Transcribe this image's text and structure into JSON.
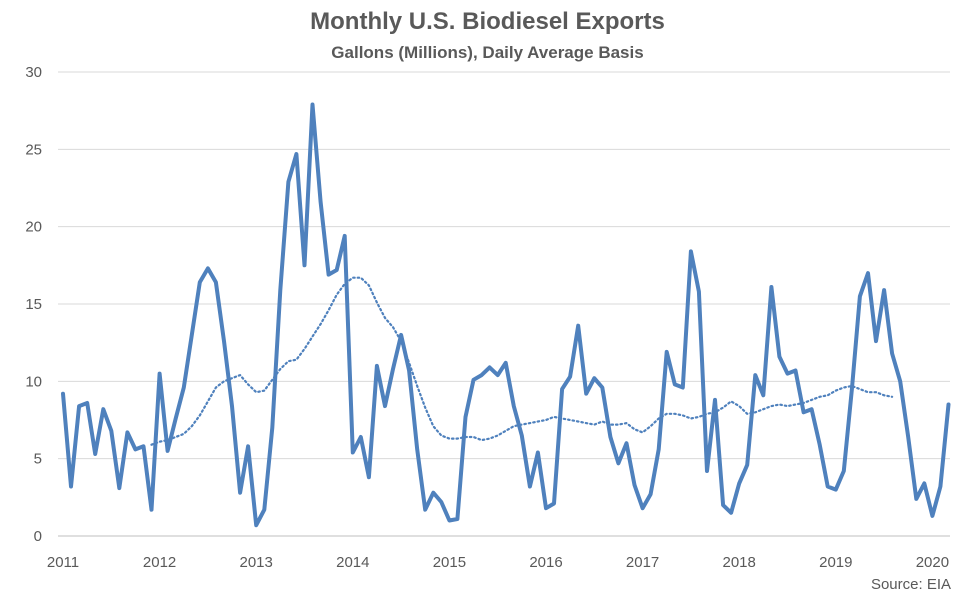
{
  "chart_data": {
    "type": "line",
    "title": "Monthly U.S. Biodiesel Exports",
    "subtitle": "Gallons (Millions), Daily Average Basis",
    "source": "Source: EIA",
    "xlabel": "",
    "ylabel": "",
    "ylim": [
      0,
      30
    ],
    "yticks": [
      0,
      5,
      10,
      15,
      20,
      25,
      30
    ],
    "xticks": [
      "2011",
      "2012",
      "2013",
      "2014",
      "2015",
      "2016",
      "2017",
      "2018",
      "2019",
      "2020"
    ],
    "x_start_year": 2011,
    "grid": "horizontal",
    "colors": {
      "series": "#4f81bd",
      "grid": "#d9d9d9",
      "text": "#595959"
    },
    "series": [
      {
        "style": "solid",
        "values": [
          9.2,
          3.2,
          8.4,
          8.6,
          5.3,
          8.2,
          6.8,
          3.1,
          6.7,
          5.6,
          5.8,
          1.7,
          10.5,
          5.5,
          7.6,
          9.6,
          13.0,
          16.4,
          17.3,
          16.4,
          12.6,
          8.4,
          2.8,
          5.8,
          0.7,
          1.7,
          7.0,
          15.9,
          22.9,
          24.7,
          17.5,
          27.9,
          21.6,
          16.9,
          17.2,
          19.4,
          5.4,
          6.4,
          3.8,
          11.0,
          8.4,
          10.8,
          13.0,
          10.7,
          5.6,
          1.7,
          2.8,
          2.2,
          1.0,
          1.1,
          7.7,
          10.1,
          10.4,
          10.9,
          10.4,
          11.2,
          8.4,
          6.5,
          3.2,
          5.4,
          1.8,
          2.1,
          9.5,
          10.3,
          13.6,
          9.2,
          10.2,
          9.6,
          6.4,
          4.7,
          6.0,
          3.3,
          1.8,
          2.7,
          5.6,
          11.9,
          9.8,
          9.6,
          18.4,
          15.8,
          4.2,
          8.8,
          2.0,
          1.5,
          3.4,
          4.6,
          10.4,
          9.1,
          16.1,
          11.6,
          10.5,
          10.7,
          8.0,
          8.2,
          5.9,
          3.2,
          3.0,
          4.2,
          9.5,
          15.5,
          17.0,
          12.6,
          15.9,
          11.8,
          10.0,
          6.4,
          2.4,
          3.4,
          1.3,
          3.2,
          8.5
        ]
      },
      {
        "style": "dotted",
        "start_index": 11,
        "values": [
          5.9,
          6.1,
          6.2,
          6.4,
          6.6,
          7.1,
          7.8,
          8.7,
          9.6,
          10.0,
          10.2,
          10.4,
          9.8,
          9.3,
          9.4,
          10.1,
          10.8,
          11.3,
          11.4,
          12.1,
          12.9,
          13.7,
          14.6,
          15.6,
          16.3,
          16.7,
          16.7,
          16.2,
          15.1,
          14.1,
          13.5,
          12.6,
          11.2,
          9.7,
          8.3,
          7.1,
          6.5,
          6.3,
          6.3,
          6.4,
          6.4,
          6.2,
          6.3,
          6.5,
          6.8,
          7.1,
          7.2,
          7.3,
          7.4,
          7.5,
          7.7,
          7.6,
          7.5,
          7.4,
          7.3,
          7.2,
          7.4,
          7.2,
          7.2,
          7.3,
          6.9,
          6.7,
          7.1,
          7.6,
          7.9,
          7.9,
          7.8,
          7.6,
          7.7,
          7.9,
          8.0,
          8.3,
          8.7,
          8.4,
          7.9,
          8.0,
          8.2,
          8.4,
          8.5,
          8.4,
          8.5,
          8.6,
          8.8,
          9.0,
          9.1,
          9.4,
          9.6,
          9.7,
          9.5,
          9.3,
          9.3,
          9.1,
          9.0
        ]
      }
    ]
  }
}
